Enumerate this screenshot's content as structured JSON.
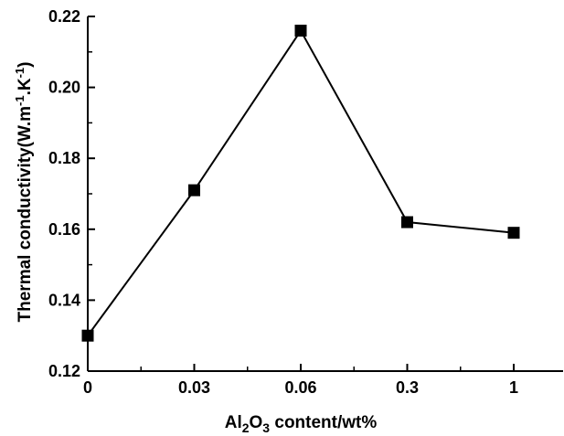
{
  "chart_data": {
    "type": "line",
    "title": "",
    "xlabel": {
      "pre": "Al",
      "sub1": "2",
      "mid": "O",
      "sub2": "3",
      "post": " content/wt%"
    },
    "ylabel": {
      "pre": "Thermal conductivity(W.m",
      "sup1": "-1",
      "mid": ".K",
      "sup2": "-1",
      "post": ")"
    },
    "categories": [
      "0",
      "0.03",
      "0.06",
      "0.3",
      "1"
    ],
    "series": [
      {
        "values": [
          0.13,
          0.171,
          0.216,
          0.162,
          0.159
        ]
      }
    ],
    "ylim": [
      0.12,
      0.22
    ],
    "yticks": [
      "0.12",
      "0.14",
      "0.16",
      "0.18",
      "0.20",
      "0.22"
    ],
    "grid": false,
    "marker": "square",
    "colors": {
      "line": "#000000",
      "marker": "#000000",
      "axis": "#000000"
    }
  }
}
